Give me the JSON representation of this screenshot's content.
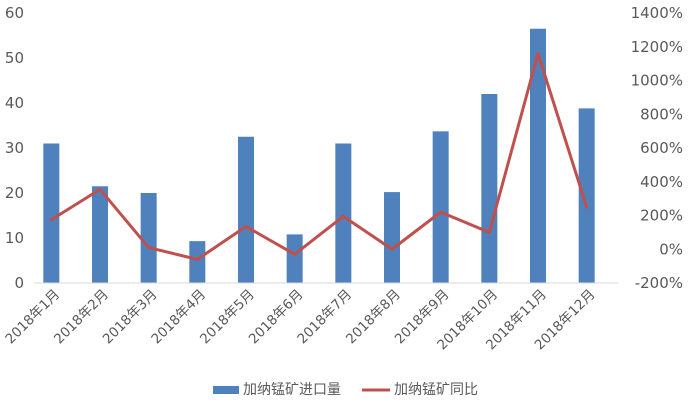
{
  "chart_data": {
    "type": "bar",
    "categories": [
      "2018年1月",
      "2018年2月",
      "2018年3月",
      "2018年4月",
      "2018年5月",
      "2018年6月",
      "2018年7月",
      "2018年8月",
      "2018年9月",
      "2018年10月",
      "2018年11月",
      "2018年12月"
    ],
    "series": [
      {
        "name": "加纳锰矿进口量",
        "type": "bar",
        "axis": "left",
        "color": "#4F81BD",
        "values": [
          31,
          21.5,
          20,
          9.3,
          32.5,
          10.8,
          31,
          20.2,
          33.7,
          42,
          56.5,
          38.8
        ]
      },
      {
        "name": "加纳锰矿同比",
        "type": "line",
        "axis": "right",
        "color": "#C0504D",
        "values": [
          175,
          355,
          10,
          -60,
          135,
          -30,
          195,
          0,
          220,
          100,
          1160,
          250
        ]
      }
    ],
    "y_left": {
      "ylim": [
        0,
        60
      ],
      "ticks": [
        "0",
        "10",
        "20",
        "30",
        "40",
        "50",
        "60"
      ]
    },
    "y_right": {
      "ylim": [
        -200,
        1400
      ],
      "ticks": [
        "-200%",
        "0%",
        "200%",
        "400%",
        "600%",
        "800%",
        "1000%",
        "1200%",
        "1400%"
      ]
    },
    "grid": false,
    "legend": "bottom"
  }
}
